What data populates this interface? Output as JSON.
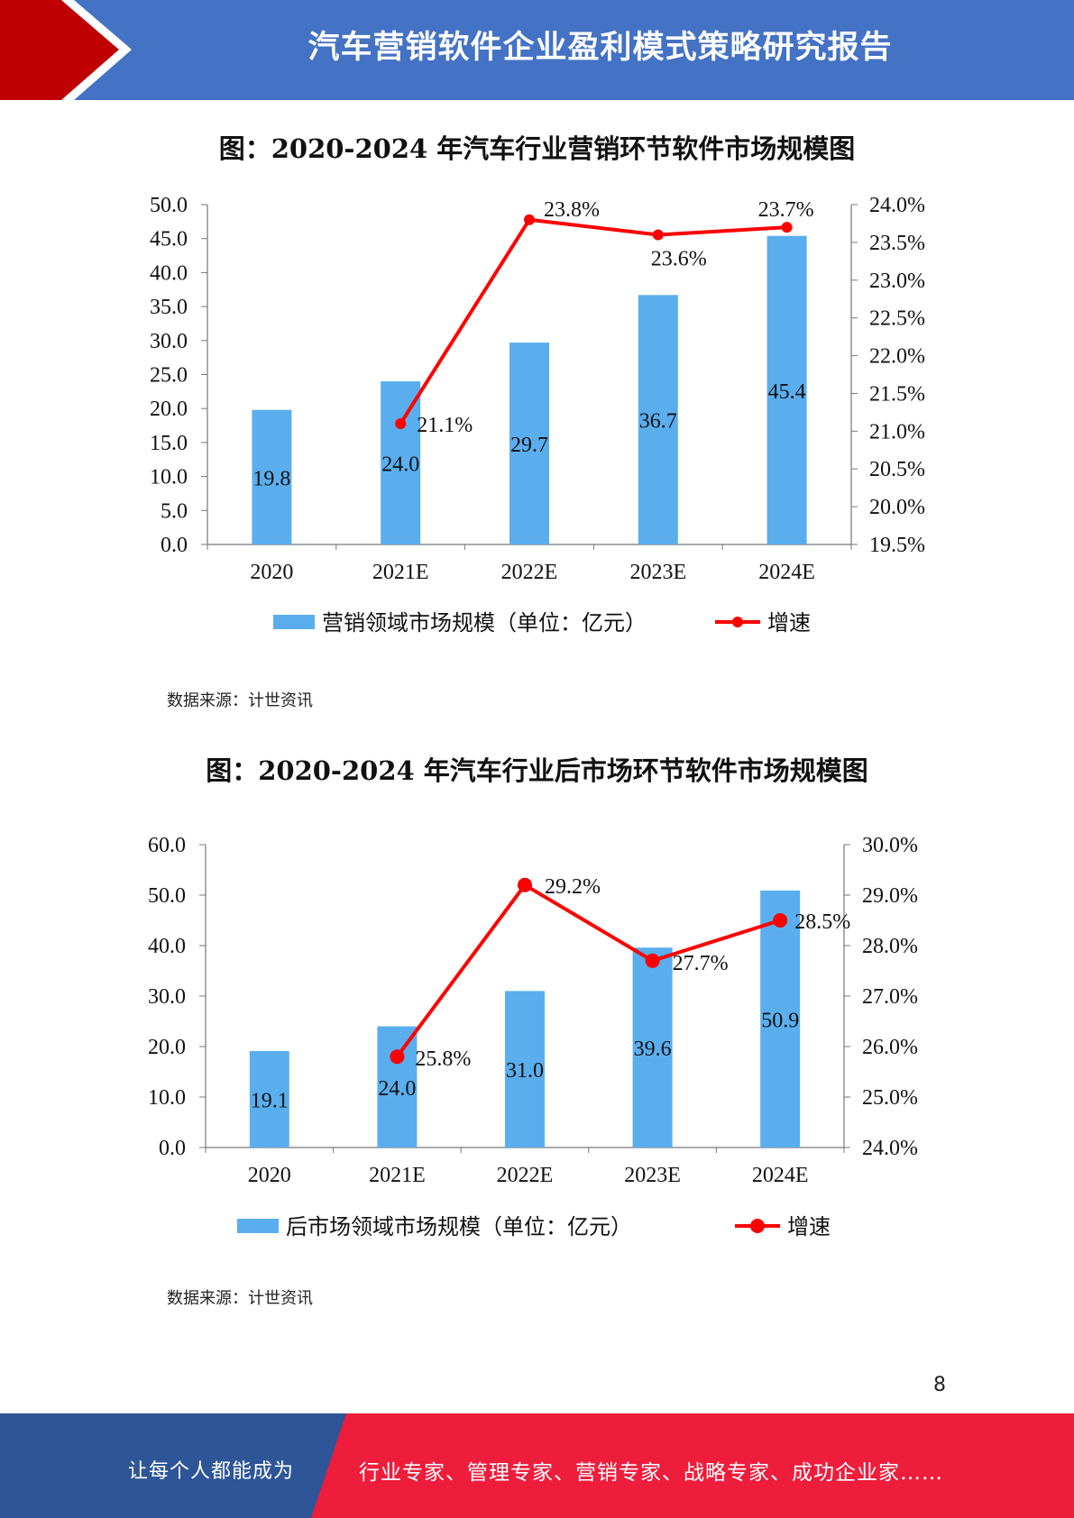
{
  "header": {
    "title": "汽车营销软件企业盈利模式策略研究报告"
  },
  "chart1": {
    "source": "数据来源：计世资讯"
  },
  "chart2": {
    "source": "数据来源：计世资讯"
  },
  "page_number": "8",
  "footer": {
    "left_text": "让每个人都能成为",
    "right_text": "行业专家、管理专家、营销专家、战略专家、成功企业家……"
  },
  "colors": {
    "bar": "#5aaeee",
    "line": "#ff0000",
    "header": "#4472c4",
    "header_arrow": "#c00000",
    "footer_blue": "#2e5597",
    "footer_red": "#ee1d3c"
  },
  "chart_data": [
    {
      "type": "bar+line",
      "title": "图：2020-2024 年汽车行业营销环节软件市场规模图",
      "categories": [
        "2020",
        "2021E",
        "2022E",
        "2023E",
        "2024E"
      ],
      "series": [
        {
          "name": "营销领域市场规模（单位：亿元）",
          "type": "bar",
          "axis": "left",
          "values": [
            19.8,
            24.0,
            29.7,
            36.7,
            45.4
          ],
          "labels": [
            "19.8",
            "24.0",
            "29.7",
            "36.7",
            "45.4"
          ]
        },
        {
          "name": "增速",
          "type": "line",
          "axis": "right",
          "values": [
            null,
            21.1,
            23.8,
            23.6,
            23.7
          ],
          "labels": [
            null,
            "21.1%",
            "23.8%",
            "23.6%",
            "23.7%"
          ]
        }
      ],
      "ylim": [
        0,
        50
      ],
      "yticks": [
        "0.0",
        "5.0",
        "10.0",
        "15.0",
        "20.0",
        "25.0",
        "30.0",
        "35.0",
        "40.0",
        "45.0",
        "50.0"
      ],
      "y2lim": [
        19.5,
        24.0
      ],
      "y2ticks": [
        "19.5%",
        "20.0%",
        "20.5%",
        "21.0%",
        "21.5%",
        "22.0%",
        "22.5%",
        "23.0%",
        "23.5%",
        "24.0%"
      ],
      "legend_position": "bottom"
    },
    {
      "type": "bar+line",
      "title": "图：2020-2024 年汽车行业后市场环节软件市场规模图",
      "categories": [
        "2020",
        "2021E",
        "2022E",
        "2023E",
        "2024E"
      ],
      "series": [
        {
          "name": "后市场领域市场规模（单位：亿元）",
          "type": "bar",
          "axis": "left",
          "values": [
            19.1,
            24.0,
            31.0,
            39.6,
            50.9
          ],
          "labels": [
            "19.1",
            "24.0",
            "31.0",
            "39.6",
            "50.9"
          ]
        },
        {
          "name": "增速",
          "type": "line",
          "axis": "right",
          "values": [
            null,
            25.8,
            29.2,
            27.7,
            28.5
          ],
          "labels": [
            null,
            "25.8%",
            "29.2%",
            "27.7%",
            "28.5%"
          ]
        }
      ],
      "ylim": [
        0,
        60
      ],
      "yticks": [
        "0.0",
        "10.0",
        "20.0",
        "30.0",
        "40.0",
        "50.0",
        "60.0"
      ],
      "y2lim": [
        24.0,
        30.0
      ],
      "y2ticks": [
        "24.0%",
        "25.0%",
        "26.0%",
        "27.0%",
        "28.0%",
        "29.0%",
        "30.0%"
      ],
      "legend_position": "bottom"
    }
  ]
}
